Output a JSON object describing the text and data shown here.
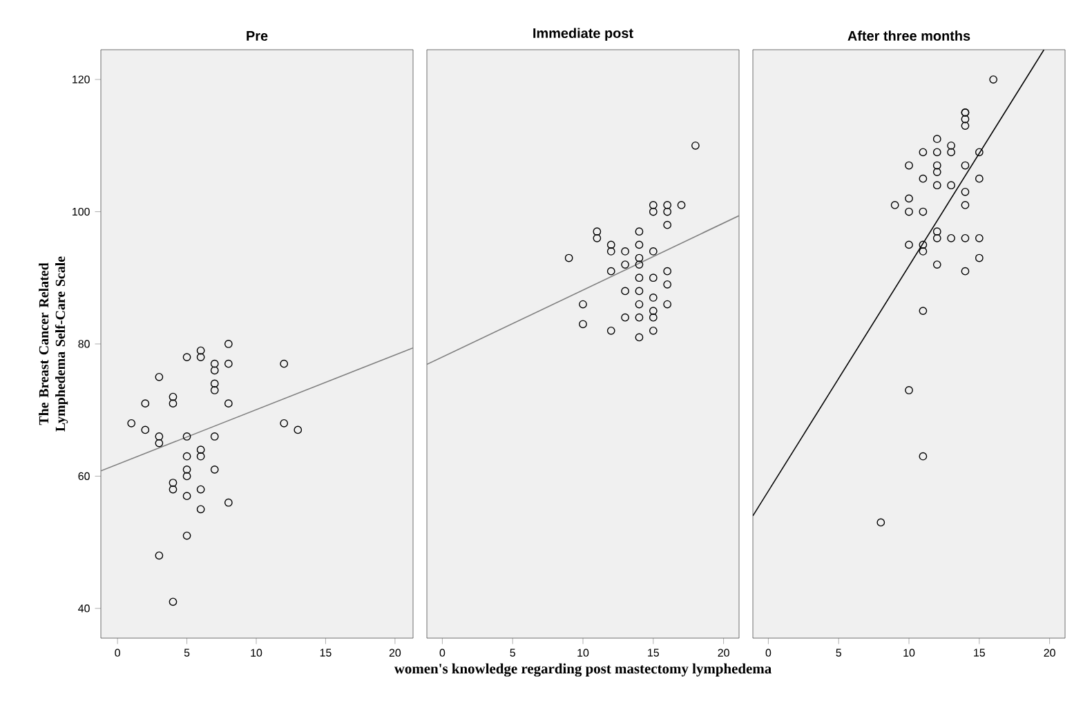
{
  "chart_data": [
    {
      "type": "scatter",
      "title": "Pre",
      "ylabel": "The Breast Cancer Related Lymphedema Self-Care Scale",
      "marker": "circle",
      "xlim": [
        -1.2,
        21.3
      ],
      "ylim": [
        35.5,
        124.5
      ],
      "xticks": [
        0,
        5,
        10,
        15,
        20
      ],
      "yticks": [
        40,
        60,
        80,
        100,
        120
      ],
      "series": [
        {
          "color": "#000000",
          "x": [
            1,
            2,
            2,
            3,
            3,
            3,
            3,
            4,
            4,
            4,
            4,
            4,
            5,
            5,
            5,
            5,
            5,
            5,
            5,
            6,
            6,
            6,
            6,
            6,
            6,
            7,
            7,
            7,
            7,
            7,
            7,
            8,
            8,
            8,
            8,
            12,
            12,
            13
          ],
          "values": [
            68,
            71,
            67,
            75,
            66,
            65,
            48,
            72,
            71,
            59,
            58,
            41,
            78,
            66,
            63,
            61,
            60,
            57,
            51,
            79,
            78,
            64,
            63,
            58,
            55,
            77,
            76,
            74,
            73,
            66,
            61,
            80,
            77,
            71,
            56,
            77,
            68,
            67
          ]
        },
        {
          "type": "line",
          "color": "#7f7f7f",
          "marker": "none",
          "x": [
            -1.2,
            21.3
          ],
          "values": [
            60.8,
            79.4
          ]
        }
      ]
    },
    {
      "type": "scatter",
      "title": "Immediate post",
      "xlabel": "women's knowledge regarding post mastectomy lymphedema",
      "marker": "circle",
      "tick_labels": "x",
      "xlim": [
        -1.1,
        21.1
      ],
      "ylim": [
        35.5,
        124.5
      ],
      "xticks": [
        0,
        5,
        10,
        15,
        20
      ],
      "series": [
        {
          "color": "#000000",
          "x": [
            9,
            10,
            10,
            11,
            11,
            12,
            12,
            12,
            12,
            13,
            13,
            13,
            13,
            14,
            14,
            14,
            14,
            14,
            14,
            14,
            14,
            14,
            15,
            15,
            15,
            15,
            15,
            15,
            15,
            15,
            16,
            16,
            16,
            16,
            16,
            16,
            17,
            18
          ],
          "values": [
            93,
            86,
            83,
            97,
            96,
            95,
            94,
            91,
            82,
            94,
            92,
            88,
            84,
            97,
            95,
            93,
            92,
            90,
            88,
            86,
            84,
            81,
            101,
            100,
            94,
            90,
            87,
            85,
            84,
            82,
            101,
            100,
            98,
            91,
            89,
            86,
            101,
            110
          ]
        },
        {
          "type": "line",
          "color": "#7f7f7f",
          "marker": "none",
          "x": [
            -1.1,
            21.1
          ],
          "values": [
            76.9,
            99.4
          ]
        }
      ]
    },
    {
      "type": "scatter",
      "title": "After three months",
      "marker": "circle",
      "tick_labels": "x",
      "xlim": [
        -1.1,
        21.1
      ],
      "ylim": [
        35.5,
        124.5
      ],
      "xticks": [
        0,
        5,
        10,
        15,
        20
      ],
      "series": [
        {
          "color": "#000000",
          "x": [
            16,
            14,
            14,
            14,
            14,
            12,
            13,
            13,
            11,
            12,
            15,
            10,
            12,
            12,
            14,
            11,
            15,
            12,
            13,
            14,
            9,
            10,
            10,
            11,
            14,
            12,
            12,
            13,
            14,
            15,
            10,
            11,
            11,
            12,
            14,
            15,
            11,
            10,
            11,
            8
          ],
          "values": [
            120,
            115,
            115,
            114,
            113,
            111,
            110,
            109,
            109,
            109,
            109,
            107,
            107,
            106,
            107,
            105,
            105,
            104,
            104,
            103,
            101,
            102,
            100,
            100,
            101,
            97,
            96,
            96,
            96,
            96,
            95,
            95,
            94,
            92,
            91,
            93,
            85,
            73,
            63,
            53
          ]
        },
        {
          "type": "line",
          "color": "#000000",
          "marker": "none",
          "x": [
            -1.1,
            19.6
          ],
          "values": [
            54.0,
            124.5
          ]
        }
      ]
    }
  ]
}
